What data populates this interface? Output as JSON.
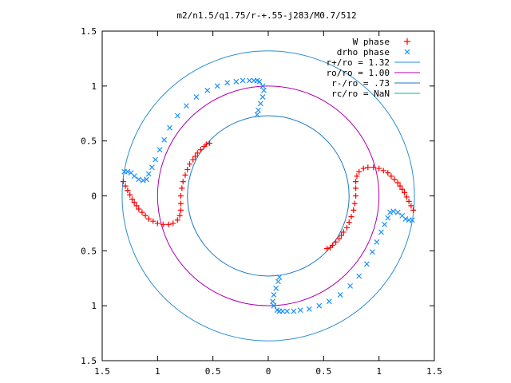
{
  "chart_data": {
    "type": "scatter",
    "title": "m2/n1.5/q1.75/r-+.55-j283/M0.7/512",
    "xlim": [
      -1.5,
      1.5
    ],
    "ylim": [
      -1.5,
      1.5
    ],
    "x_tick_values": [
      -1.5,
      -1,
      -0.5,
      0,
      0.5,
      1,
      1.5
    ],
    "x_tick_labels": [
      "1.5",
      "1",
      "0.5",
      "0",
      "0.5",
      "1",
      "1.5"
    ],
    "y_tick_values": [
      1.5,
      1,
      0.5,
      0,
      -0.5,
      -1,
      -1.5
    ],
    "y_tick_labels": [
      "1.5",
      "1",
      "0.5",
      "0",
      "0.5",
      "1",
      "1.5"
    ],
    "grid": false,
    "legend_position": "top-right",
    "legend": [
      {
        "label": "W phase",
        "marker": "+",
        "color": "#ff0000"
      },
      {
        "label": "drho phase",
        "marker": "x",
        "color": "#1e90ff"
      },
      {
        "label": "r+/ro = 1.32",
        "marker": "line",
        "color": "#2a8fd0"
      },
      {
        "label": "ro/ro = 1.00",
        "marker": "line",
        "color": "#b000b0"
      },
      {
        "label": "r-/ro = .73",
        "marker": "line",
        "color": "#1878c8"
      },
      {
        "label": "rc/ro = NaN",
        "marker": "line",
        "color": "#00b0b0"
      }
    ],
    "circles": [
      {
        "name": "r+/ro = 1.32",
        "r": 1.32,
        "color": "#2a8fd0"
      },
      {
        "name": "ro/ro = 1.00",
        "r": 1.0,
        "color": "#b000b0"
      },
      {
        "name": "r-/ro = .73",
        "r": 0.73,
        "color": "#1878c8"
      }
    ],
    "series": [
      {
        "name": "W phase",
        "marker": "+",
        "color": "#ff0000",
        "points": [
          [
            -1.31,
            0.13
          ],
          [
            -1.29,
            0.09
          ],
          [
            -1.27,
            0.05
          ],
          [
            -1.25,
            0.01
          ],
          [
            -1.23,
            -0.03
          ],
          [
            -1.21,
            -0.06
          ],
          [
            -1.19,
            -0.09
          ],
          [
            -1.17,
            -0.12
          ],
          [
            -1.14,
            -0.15
          ],
          [
            -1.11,
            -0.18
          ],
          [
            -1.08,
            -0.21
          ],
          [
            -1.04,
            -0.23
          ],
          [
            -1.0,
            -0.25
          ],
          [
            -0.95,
            -0.26
          ],
          [
            -0.9,
            -0.26
          ],
          [
            -0.86,
            -0.25
          ],
          [
            -0.82,
            -0.22
          ],
          [
            -0.8,
            -0.18
          ],
          [
            -0.79,
            -0.13
          ],
          [
            -0.79,
            -0.07
          ],
          [
            -0.79,
            0.0
          ],
          [
            -0.78,
            0.07
          ],
          [
            -0.77,
            0.13
          ],
          [
            -0.75,
            0.19
          ],
          [
            -0.73,
            0.24
          ],
          [
            -0.71,
            0.29
          ],
          [
            -0.68,
            0.33
          ],
          [
            -0.66,
            0.36
          ],
          [
            -0.64,
            0.39
          ],
          [
            -0.61,
            0.42
          ],
          [
            -0.58,
            0.45
          ],
          [
            -0.56,
            0.47
          ],
          [
            -0.53,
            0.48
          ],
          [
            1.31,
            -0.13
          ],
          [
            1.29,
            -0.09
          ],
          [
            1.27,
            -0.05
          ],
          [
            1.25,
            -0.01
          ],
          [
            1.23,
            0.03
          ],
          [
            1.21,
            0.06
          ],
          [
            1.19,
            0.09
          ],
          [
            1.17,
            0.12
          ],
          [
            1.14,
            0.15
          ],
          [
            1.11,
            0.18
          ],
          [
            1.08,
            0.21
          ],
          [
            1.04,
            0.23
          ],
          [
            1.0,
            0.25
          ],
          [
            0.95,
            0.26
          ],
          [
            0.9,
            0.26
          ],
          [
            0.86,
            0.25
          ],
          [
            0.82,
            0.22
          ],
          [
            0.8,
            0.18
          ],
          [
            0.79,
            0.13
          ],
          [
            0.79,
            0.07
          ],
          [
            0.79,
            0.0
          ],
          [
            0.78,
            -0.07
          ],
          [
            0.77,
            -0.13
          ],
          [
            0.75,
            -0.19
          ],
          [
            0.73,
            -0.24
          ],
          [
            0.71,
            -0.29
          ],
          [
            0.68,
            -0.33
          ],
          [
            0.66,
            -0.36
          ],
          [
            0.64,
            -0.39
          ],
          [
            0.61,
            -0.42
          ],
          [
            0.58,
            -0.45
          ],
          [
            0.56,
            -0.47
          ],
          [
            0.53,
            -0.48
          ]
        ]
      },
      {
        "name": "drho phase",
        "marker": "x",
        "color": "#1e90ff",
        "points": [
          [
            -1.3,
            0.22
          ],
          [
            -1.27,
            0.22
          ],
          [
            -1.24,
            0.21
          ],
          [
            -1.21,
            0.18
          ],
          [
            -1.17,
            0.15
          ],
          [
            -1.13,
            0.14
          ],
          [
            -1.1,
            0.15
          ],
          [
            -1.08,
            0.2
          ],
          [
            -1.05,
            0.26
          ],
          [
            -1.02,
            0.33
          ],
          [
            -0.98,
            0.42
          ],
          [
            -0.94,
            0.51
          ],
          [
            -0.89,
            0.62
          ],
          [
            -0.82,
            0.73
          ],
          [
            -0.74,
            0.82
          ],
          [
            -0.65,
            0.9
          ],
          [
            -0.55,
            0.96
          ],
          [
            -0.46,
            1.0
          ],
          [
            -0.37,
            1.03
          ],
          [
            -0.29,
            1.04
          ],
          [
            -0.23,
            1.05
          ],
          [
            -0.17,
            1.05
          ],
          [
            -0.13,
            1.05
          ],
          [
            -0.1,
            1.05
          ],
          [
            -0.08,
            1.04
          ],
          [
            -0.05,
            1.0
          ],
          [
            -0.04,
            0.96
          ],
          [
            -0.05,
            0.9
          ],
          [
            -0.07,
            0.84
          ],
          [
            -0.09,
            0.78
          ],
          [
            -0.1,
            0.74
          ],
          [
            1.3,
            -0.22
          ],
          [
            1.27,
            -0.22
          ],
          [
            1.24,
            -0.21
          ],
          [
            1.21,
            -0.18
          ],
          [
            1.17,
            -0.15
          ],
          [
            1.13,
            -0.14
          ],
          [
            1.1,
            -0.15
          ],
          [
            1.08,
            -0.2
          ],
          [
            1.05,
            -0.26
          ],
          [
            1.02,
            -0.33
          ],
          [
            0.98,
            -0.42
          ],
          [
            0.94,
            -0.51
          ],
          [
            0.89,
            -0.62
          ],
          [
            0.82,
            -0.73
          ],
          [
            0.74,
            -0.82
          ],
          [
            0.65,
            -0.9
          ],
          [
            0.55,
            -0.96
          ],
          [
            0.46,
            -1.0
          ],
          [
            0.37,
            -1.03
          ],
          [
            0.29,
            -1.04
          ],
          [
            0.23,
            -1.05
          ],
          [
            0.17,
            -1.05
          ],
          [
            0.13,
            -1.05
          ],
          [
            0.1,
            -1.05
          ],
          [
            0.08,
            -1.04
          ],
          [
            0.05,
            -1.0
          ],
          [
            0.04,
            -0.96
          ],
          [
            0.05,
            -0.9
          ],
          [
            0.07,
            -0.84
          ],
          [
            0.09,
            -0.78
          ],
          [
            0.1,
            -0.74
          ]
        ]
      }
    ]
  }
}
